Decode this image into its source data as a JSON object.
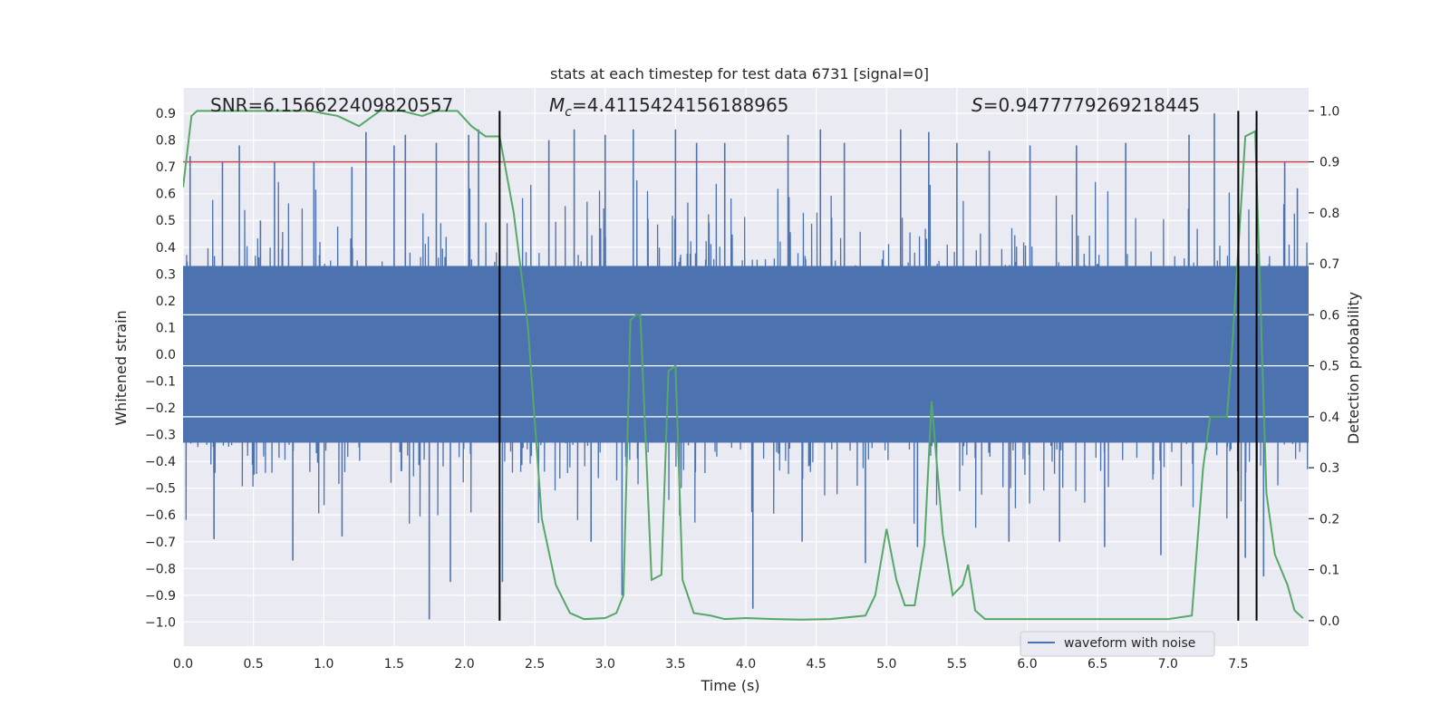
{
  "chart_data": {
    "type": "line",
    "title": "stats at each timestep for test data 6731 [signal=0]",
    "xlabel": "Time (s)",
    "ylabel": "Whitened strain",
    "ylabel_right": "Detection probability",
    "xlim": [
      0.0,
      8.0
    ],
    "ylim": [
      -1.09,
      0.995
    ],
    "ylim_right": [
      -0.05,
      1.045
    ],
    "x_ticks": [
      0.0,
      0.5,
      1.0,
      1.5,
      2.0,
      2.5,
      3.0,
      3.5,
      4.0,
      4.5,
      5.0,
      5.5,
      6.0,
      6.5,
      7.0,
      7.5
    ],
    "x_tick_labels": [
      "0.0",
      "0.5",
      "1.0",
      "1.5",
      "2.0",
      "2.5",
      "3.0",
      "3.5",
      "4.0",
      "4.5",
      "5.0",
      "5.5",
      "6.0",
      "6.5",
      "7.0",
      "7.5"
    ],
    "y_ticks": [
      0.9,
      0.8,
      0.7,
      0.6,
      0.5,
      0.4,
      0.3,
      0.2,
      0.1,
      0.0,
      -0.1,
      -0.2,
      -0.3,
      -0.4,
      -0.5,
      -0.6,
      -0.7,
      -0.8,
      -0.9,
      -1.0
    ],
    "y_tick_labels": [
      "0.9",
      "0.8",
      "0.7",
      "0.6",
      "0.5",
      "0.4",
      "0.3",
      "0.2",
      "0.1",
      "0.0",
      "−0.1",
      "−0.2",
      "−0.3",
      "−0.4",
      "−0.5",
      "−0.6",
      "−0.7",
      "−0.8",
      "−0.9",
      "−1.0"
    ],
    "y_right_ticks": [
      1.0,
      0.9,
      0.8,
      0.7,
      0.6,
      0.5,
      0.4,
      0.3,
      0.2,
      0.1,
      0.0
    ],
    "y_right_tick_labels": [
      "1.0",
      "0.9",
      "0.8",
      "0.7",
      "0.6",
      "0.5",
      "0.4",
      "0.3",
      "0.2",
      "0.1",
      "0.0"
    ],
    "annotations": {
      "snr": "SNR=6.156622409820557",
      "mc_symbol": "M",
      "mc_sub": "c",
      "mc_value": "=4.4115424156188965",
      "s_symbol": "S",
      "s_value": "=0.9477779269218445"
    },
    "threshold_line_right": 0.9,
    "vertical_lines_x": [
      2.25,
      7.5,
      7.63
    ],
    "legend": {
      "label": "waveform with noise",
      "position": "lower-right"
    },
    "grid": true,
    "series": [
      {
        "name": "waveform with noise",
        "axis": "left",
        "style": "dense noise trace, typical range ±0.33, sparse peaks up to 0.9 and down to -1.0",
        "core_range": [
          -0.33,
          0.33
        ],
        "spikes": [
          [
            0.05,
            0.74
          ],
          [
            0.22,
            -0.69
          ],
          [
            0.28,
            0.72
          ],
          [
            0.4,
            0.78
          ],
          [
            0.55,
            0.5
          ],
          [
            0.65,
            0.72
          ],
          [
            0.78,
            -0.77
          ],
          [
            0.93,
            0.72
          ],
          [
            1.13,
            -0.68
          ],
          [
            1.2,
            0.7
          ],
          [
            1.3,
            0.83
          ],
          [
            1.5,
            0.78
          ],
          [
            1.58,
            0.82
          ],
          [
            1.75,
            -0.99
          ],
          [
            1.8,
            0.79
          ],
          [
            1.9,
            -0.85
          ],
          [
            2.03,
            0.82
          ],
          [
            2.1,
            0.84
          ],
          [
            2.27,
            -0.85
          ],
          [
            2.6,
            0.8
          ],
          [
            2.78,
            0.84
          ],
          [
            2.9,
            -0.7
          ],
          [
            3.0,
            0.82
          ],
          [
            3.12,
            -0.9
          ],
          [
            3.2,
            0.84
          ],
          [
            3.5,
            0.84
          ],
          [
            3.65,
            0.79
          ],
          [
            3.85,
            0.79
          ],
          [
            4.05,
            -0.95
          ],
          [
            4.3,
            0.82
          ],
          [
            4.4,
            -0.7
          ],
          [
            4.53,
            0.84
          ],
          [
            4.7,
            0.79
          ],
          [
            4.85,
            -0.78
          ],
          [
            5.1,
            0.84
          ],
          [
            5.22,
            -0.72
          ],
          [
            5.3,
            0.83
          ],
          [
            5.5,
            0.79
          ],
          [
            5.73,
            0.76
          ],
          [
            5.87,
            -0.7
          ],
          [
            6.02,
            0.78
          ],
          [
            6.23,
            -0.7
          ],
          [
            6.35,
            0.78
          ],
          [
            6.55,
            -0.72
          ],
          [
            6.7,
            0.79
          ],
          [
            6.95,
            -0.75
          ],
          [
            7.15,
            0.82
          ],
          [
            7.33,
            0.9
          ],
          [
            7.55,
            -0.76
          ],
          [
            7.68,
            -0.83
          ],
          [
            7.83,
            0.72
          ],
          [
            7.92,
            0.62
          ]
        ]
      },
      {
        "name": "detection probability",
        "axis": "right",
        "x": [
          0.0,
          0.06,
          0.1,
          0.2,
          0.5,
          0.9,
          1.1,
          1.25,
          1.4,
          1.55,
          1.7,
          1.8,
          1.95,
          2.05,
          2.15,
          2.25,
          2.35,
          2.45,
          2.55,
          2.65,
          2.75,
          2.85,
          3.0,
          3.08,
          3.13,
          3.18,
          3.22,
          3.25,
          3.33,
          3.4,
          3.45,
          3.5,
          3.55,
          3.63,
          3.75,
          3.85,
          4.0,
          4.2,
          4.4,
          4.6,
          4.85,
          4.92,
          5.0,
          5.07,
          5.13,
          5.2,
          5.27,
          5.32,
          5.4,
          5.47,
          5.54,
          5.58,
          5.63,
          5.7,
          6.0,
          6.3,
          6.5,
          7.0,
          7.17,
          7.25,
          7.3,
          7.35,
          7.42,
          7.46,
          7.55,
          7.62,
          7.7,
          7.76,
          7.85,
          7.9,
          7.96
        ],
        "y": [
          0.85,
          0.99,
          1.0,
          1.0,
          1.0,
          1.0,
          0.99,
          0.97,
          1.0,
          1.0,
          0.99,
          1.0,
          1.0,
          0.97,
          0.95,
          0.95,
          0.8,
          0.58,
          0.2,
          0.07,
          0.015,
          0.003,
          0.005,
          0.015,
          0.05,
          0.59,
          0.6,
          0.6,
          0.08,
          0.09,
          0.49,
          0.5,
          0.08,
          0.015,
          0.01,
          0.003,
          0.005,
          0.003,
          0.002,
          0.003,
          0.01,
          0.05,
          0.18,
          0.08,
          0.03,
          0.03,
          0.15,
          0.43,
          0.17,
          0.05,
          0.07,
          0.11,
          0.02,
          0.003,
          0.003,
          0.003,
          0.003,
          0.003,
          0.01,
          0.3,
          0.4,
          0.4,
          0.4,
          0.55,
          0.95,
          0.96,
          0.25,
          0.13,
          0.07,
          0.02,
          0.005
        ]
      }
    ],
    "colors": {
      "waveform": "#4c72b0",
      "probability": "#55a868",
      "threshold": "#c44e52",
      "vline": "#000000",
      "background": "#eaeaf2",
      "grid": "#ffffff"
    }
  }
}
